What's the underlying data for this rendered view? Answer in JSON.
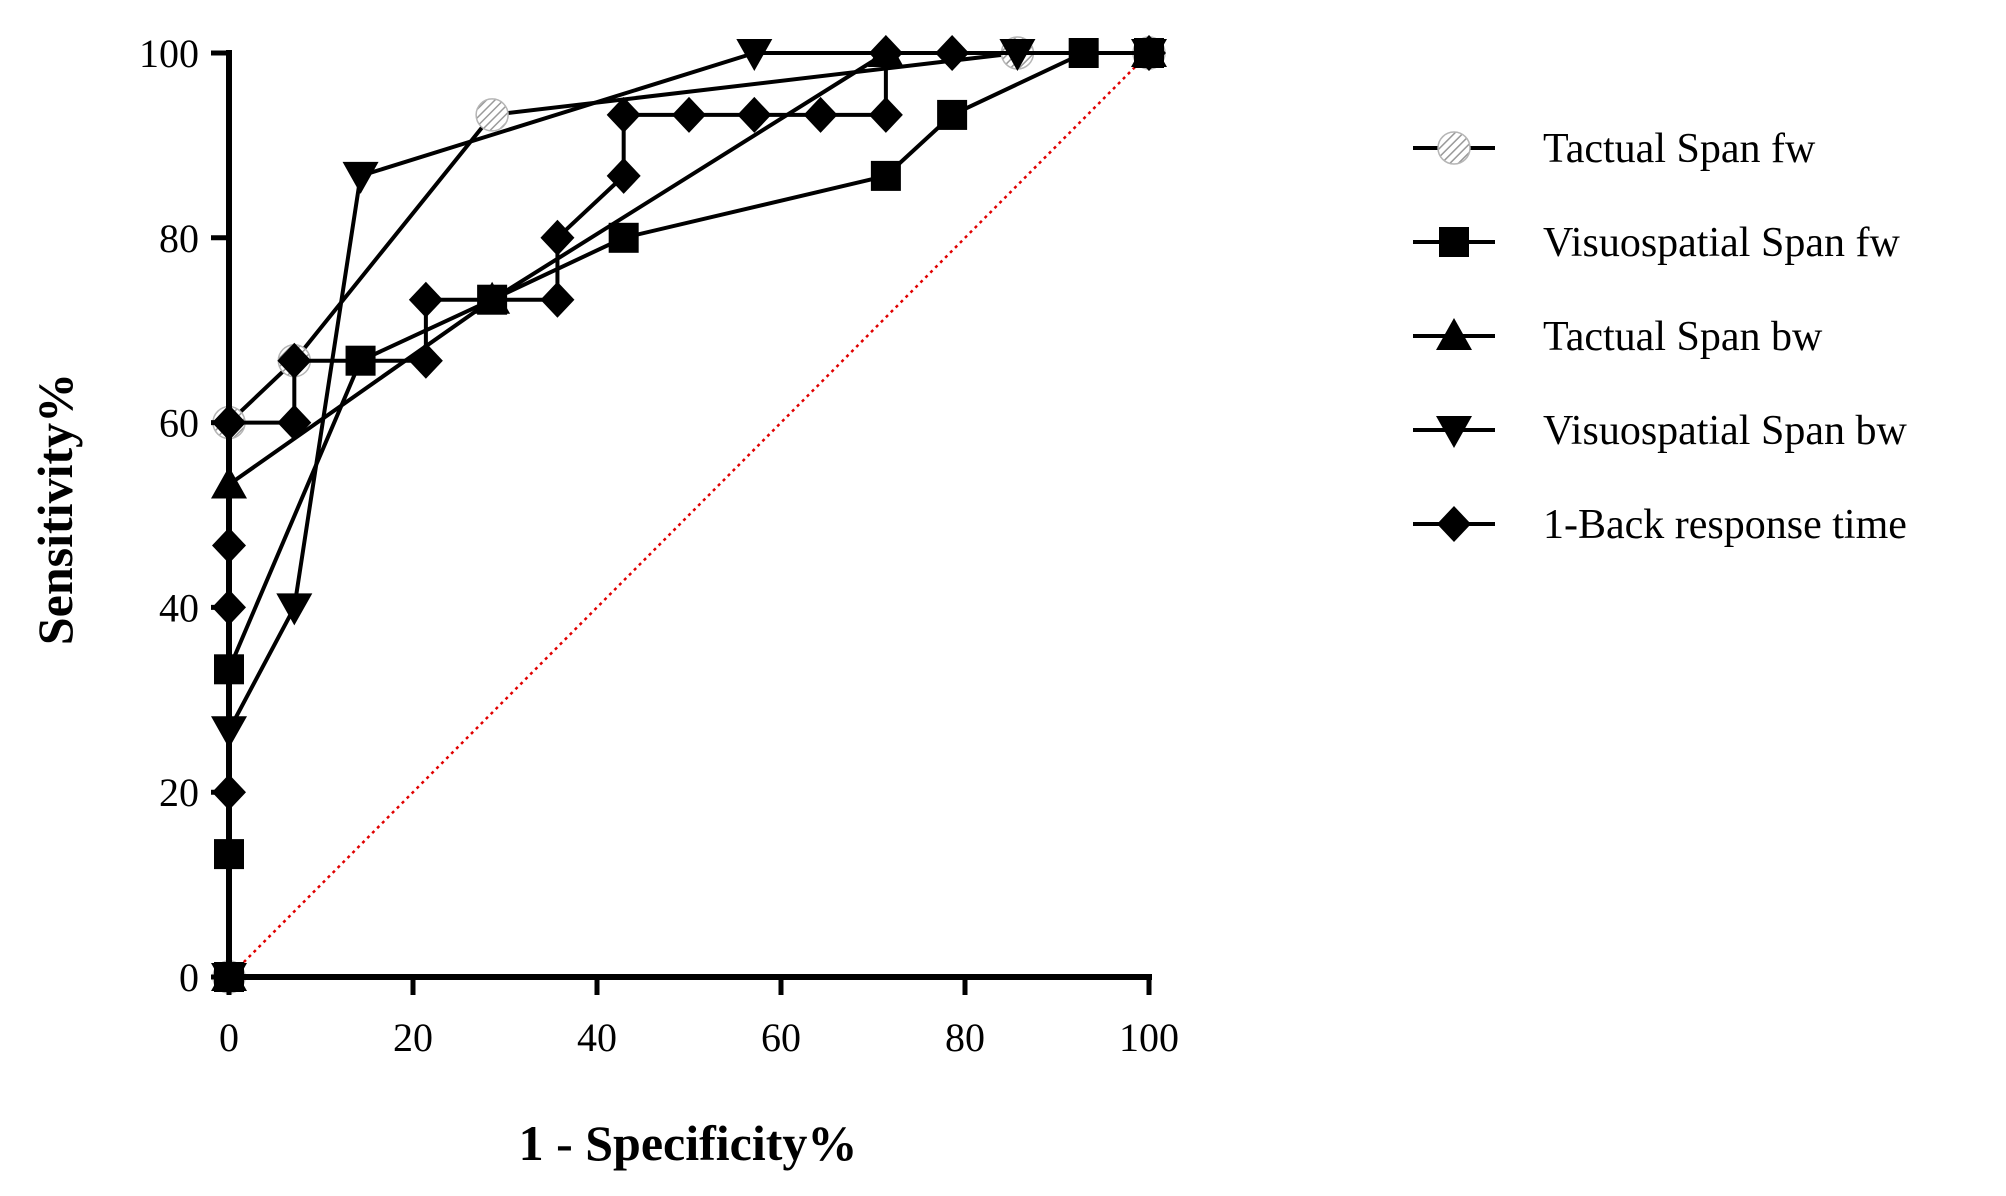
{
  "chart_data": {
    "type": "line",
    "xlabel": "1 - Specificity%",
    "ylabel": "Sensitivity%",
    "xlim": [
      0,
      100
    ],
    "ylim": [
      0,
      100
    ],
    "xticks": [
      0,
      20,
      40,
      60,
      80,
      100
    ],
    "yticks": [
      0,
      20,
      40,
      60,
      80,
      100
    ],
    "legend_position": "right",
    "reference_line": {
      "from": [
        0,
        0
      ],
      "to": [
        100,
        100
      ],
      "color": "#e00000",
      "style": "dotted"
    },
    "series": [
      {
        "name": "Tactual Span fw",
        "marker": "circle-hatched",
        "color": "#000000",
        "x": [
          0,
          0,
          7.1,
          28.6,
          85.7,
          100
        ],
        "y": [
          0,
          60,
          66.7,
          93.3,
          100,
          100
        ]
      },
      {
        "name": "Visuospatial Span fw",
        "marker": "square",
        "color": "#000000",
        "x": [
          0,
          0,
          0,
          14.3,
          28.6,
          42.9,
          71.4,
          78.6,
          92.9,
          100
        ],
        "y": [
          0,
          13.3,
          33.3,
          66.7,
          73.3,
          80,
          86.7,
          93.3,
          100,
          100
        ]
      },
      {
        "name": "Tactual Span bw",
        "marker": "triangle-up",
        "color": "#000000",
        "x": [
          0,
          0,
          28.6,
          71.4,
          100
        ],
        "y": [
          0,
          53.3,
          73.3,
          100,
          100
        ]
      },
      {
        "name": "Visuospatial Span bw",
        "marker": "triangle-down",
        "color": "#000000",
        "x": [
          0,
          0,
          7.1,
          14.3,
          57.1,
          85.7,
          100
        ],
        "y": [
          0,
          26.7,
          40,
          86.7,
          100,
          100,
          100
        ]
      },
      {
        "name": "1-Back response time",
        "marker": "diamond",
        "color": "#000000",
        "x": [
          0,
          0,
          0,
          0,
          0,
          7.1,
          7.1,
          21.4,
          21.4,
          35.7,
          35.7,
          42.9,
          42.9,
          50,
          57.1,
          64.3,
          71.4,
          71.4,
          78.6,
          100
        ],
        "y": [
          0,
          20,
          40,
          46.7,
          60,
          60,
          66.7,
          66.7,
          73.3,
          73.3,
          80,
          86.7,
          93.3,
          93.3,
          93.3,
          93.3,
          93.3,
          100,
          100,
          100
        ]
      }
    ]
  }
}
